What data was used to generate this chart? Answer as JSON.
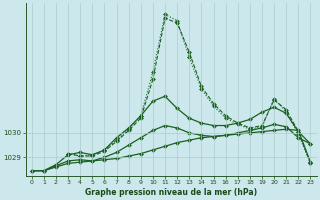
{
  "xlabel": "Graphe pression niveau de la mer (hPa)",
  "background_color": "#cce8ec",
  "grid_color": "#aacccc",
  "line_color": "#1a6020",
  "marker_color": "#1a6020",
  "xlim": [
    -0.5,
    23.5
  ],
  "ylim": [
    1028.25,
    1035.3
  ],
  "yticks": [
    1029,
    1030
  ],
  "xticks": [
    0,
    1,
    2,
    3,
    4,
    5,
    6,
    7,
    8,
    9,
    10,
    11,
    12,
    13,
    14,
    15,
    16,
    17,
    18,
    19,
    20,
    21,
    22,
    23
  ],
  "series": [
    {
      "x": [
        0,
        1,
        2,
        3,
        4,
        5,
        6,
        7,
        8,
        9,
        10,
        11,
        12,
        13,
        14,
        15,
        16,
        17,
        18,
        19,
        20,
        21,
        22,
        23
      ],
      "y": [
        1028.45,
        1028.45,
        1028.6,
        1028.75,
        1028.8,
        1028.85,
        1028.9,
        1028.95,
        1029.05,
        1029.15,
        1029.3,
        1029.45,
        1029.6,
        1029.7,
        1029.8,
        1029.85,
        1029.9,
        1029.95,
        1030.0,
        1030.05,
        1030.1,
        1030.15,
        1030.1,
        1028.8
      ],
      "linestyle": "-",
      "marker": "D",
      "markersize": 2.0,
      "linewidth": 0.9
    },
    {
      "x": [
        0,
        1,
        2,
        3,
        4,
        5,
        6,
        7,
        8,
        9,
        10,
        11,
        12,
        13,
        14,
        15,
        16,
        17,
        18,
        19,
        20,
        21,
        22,
        23
      ],
      "y": [
        1028.45,
        1028.45,
        1028.65,
        1028.85,
        1028.9,
        1028.85,
        1029.0,
        1029.2,
        1029.5,
        1029.8,
        1030.1,
        1030.3,
        1030.2,
        1030.0,
        1029.9,
        1029.85,
        1029.9,
        1030.0,
        1030.1,
        1030.2,
        1030.35,
        1030.25,
        1029.8,
        1029.55
      ],
      "linestyle": "-",
      "marker": "D",
      "markersize": 2.0,
      "linewidth": 0.9
    },
    {
      "x": [
        0,
        1,
        2,
        3,
        4,
        5,
        6,
        7,
        8,
        9,
        10,
        11,
        12,
        13,
        14,
        15,
        16,
        17,
        18,
        19,
        20,
        21,
        22,
        23
      ],
      "y": [
        1028.45,
        1028.45,
        1028.7,
        1029.1,
        1029.2,
        1029.1,
        1029.3,
        1029.8,
        1030.2,
        1030.7,
        1031.3,
        1031.5,
        1031.0,
        1030.6,
        1030.4,
        1030.3,
        1030.3,
        1030.4,
        1030.55,
        1030.85,
        1031.05,
        1030.8,
        1030.05,
        1029.55
      ],
      "linestyle": "-",
      "marker": "D",
      "markersize": 2.0,
      "linewidth": 0.9
    },
    {
      "x": [
        3,
        4,
        5,
        6,
        7,
        8,
        9,
        10,
        11,
        12,
        13,
        14,
        15,
        16,
        17,
        18,
        19,
        20,
        21,
        22,
        23
      ],
      "y": [
        1029.15,
        1029.05,
        1029.05,
        1029.25,
        1029.65,
        1030.1,
        1030.6,
        1032.2,
        1034.7,
        1034.5,
        1033.3,
        1031.9,
        1031.2,
        1030.7,
        1030.4,
        1030.2,
        1030.3,
        1031.35,
        1030.95,
        1030.05,
        1028.75
      ],
      "linestyle": "--",
      "marker": "D",
      "markersize": 2.0,
      "linewidth": 0.8
    },
    {
      "x": [
        3,
        4,
        5,
        6,
        7,
        8,
        9,
        10,
        11,
        12,
        13,
        14,
        15,
        16,
        17,
        18,
        19,
        20,
        21,
        22,
        23
      ],
      "y": [
        1029.15,
        1029.05,
        1029.1,
        1029.3,
        1029.7,
        1030.15,
        1030.7,
        1032.5,
        1034.85,
        1034.6,
        1033.1,
        1031.8,
        1031.1,
        1030.6,
        1030.35,
        1030.15,
        1030.25,
        1031.4,
        1030.85,
        1029.95,
        1028.75
      ],
      "linestyle": ":",
      "marker": "D",
      "markersize": 2.0,
      "linewidth": 0.8
    }
  ]
}
